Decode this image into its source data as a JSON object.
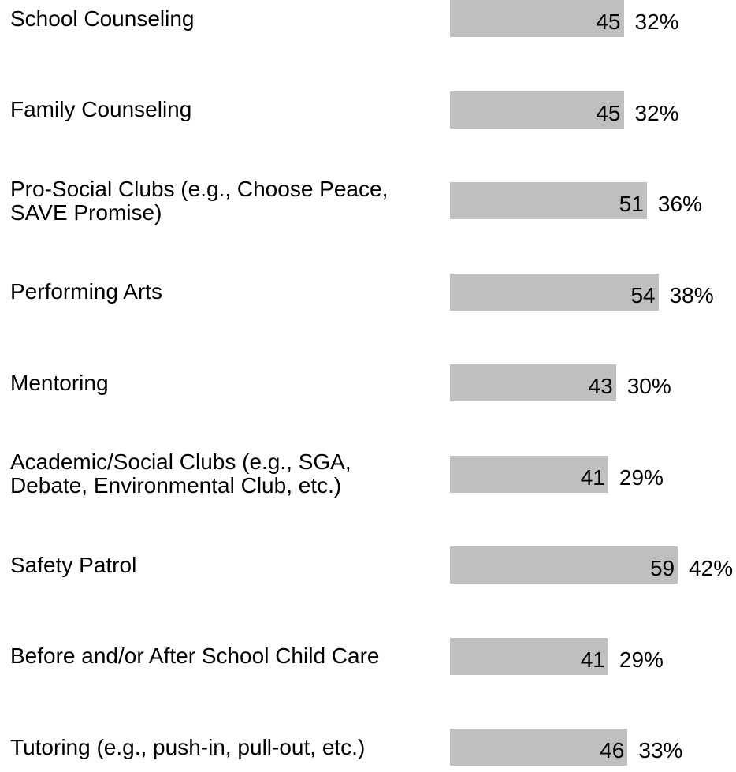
{
  "chart_data": {
    "type": "bar",
    "orientation": "horizontal",
    "categories": [
      "School Counseling",
      "Family Counseling",
      "Pro-Social Clubs (e.g., Choose Peace,\nSAVE Promise)",
      "Performing Arts",
      "Mentoring",
      "Academic/Social Clubs (e.g., SGA,\nDebate, Environmental Club, etc.)",
      "Safety Patrol",
      "Before and/or After School Child Care",
      "Tutoring (e.g., push-in, pull-out, etc.)"
    ],
    "values": [
      45,
      45,
      51,
      54,
      43,
      41,
      59,
      41,
      46
    ],
    "percent_labels": [
      "32%",
      "32%",
      "36%",
      "38%",
      "30%",
      "29%",
      "42%",
      "29%",
      "33%"
    ],
    "bar_color": "#bfbfbf",
    "grid": false,
    "legend": "none"
  }
}
